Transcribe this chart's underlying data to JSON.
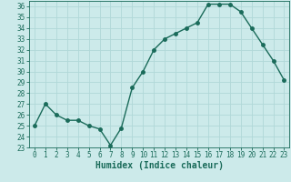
{
  "x": [
    0,
    1,
    2,
    3,
    4,
    5,
    6,
    7,
    8,
    9,
    10,
    11,
    12,
    13,
    14,
    15,
    16,
    17,
    18,
    19,
    20,
    21,
    22,
    23
  ],
  "y": [
    25.0,
    27.0,
    26.0,
    25.5,
    25.5,
    25.0,
    24.7,
    23.2,
    24.8,
    28.5,
    30.0,
    32.0,
    33.0,
    33.5,
    34.0,
    34.5,
    36.2,
    36.2,
    36.2,
    35.5,
    34.0,
    32.5,
    31.0,
    29.2
  ],
  "line_color": "#1a6b5a",
  "marker": "o",
  "markersize": 2.5,
  "linewidth": 1.0,
  "xlabel": "Humidex (Indice chaleur)",
  "xlim": [
    -0.5,
    23.5
  ],
  "ylim": [
    23,
    36.5
  ],
  "yticks": [
    23,
    24,
    25,
    26,
    27,
    28,
    29,
    30,
    31,
    32,
    33,
    34,
    35,
    36
  ],
  "xticks": [
    0,
    1,
    2,
    3,
    4,
    5,
    6,
    7,
    8,
    9,
    10,
    11,
    12,
    13,
    14,
    15,
    16,
    17,
    18,
    19,
    20,
    21,
    22,
    23
  ],
  "bg_color": "#cceaea",
  "grid_color": "#b0d8d8",
  "tick_color": "#1a6b5a",
  "label_color": "#1a6b5a",
  "font_family": "monospace",
  "tick_fontsize": 5.5,
  "xlabel_fontsize": 7.0
}
